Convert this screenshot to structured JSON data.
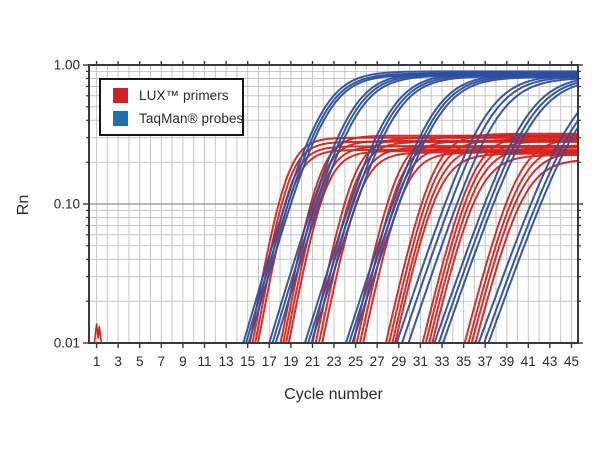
{
  "legend": {
    "items": [
      {
        "label": "LUX™ primers",
        "color": "#d22027"
      },
      {
        "label": "TaqMan® probes",
        "color": "#1e6fae"
      }
    ]
  },
  "chart_data": {
    "type": "line",
    "title": "",
    "xlabel": "Cycle number",
    "ylabel": "Rn",
    "x_scale": "linear",
    "y_scale": "log",
    "xlim": [
      1,
      45
    ],
    "ylim": [
      0.01,
      1.0
    ],
    "x_ticks": [
      1,
      3,
      5,
      7,
      9,
      11,
      13,
      15,
      17,
      19,
      21,
      23,
      25,
      27,
      29,
      31,
      33,
      35,
      37,
      39,
      41,
      43,
      45
    ],
    "y_ticks": [
      {
        "value": 1.0,
        "label": "1.00"
      },
      {
        "value": 0.1,
        "label": "0.10"
      },
      {
        "value": 0.01,
        "label": "0.01"
      }
    ],
    "grid": true,
    "legend_position": "top-left",
    "model": "Rn(c) = plateau / (1 + exp(-k*(c - cmid))); cmid chosen so each curve lifts off the 0.01 baseline at cycle ct",
    "series": [
      {
        "name": "LUX™ primers",
        "color": "#d6241c",
        "baseline_spike": {
          "points": [
            [
              0.8,
              0.01
            ],
            [
              1.0,
              0.0138
            ],
            [
              1.15,
              0.0108
            ],
            [
              1.25,
              0.0132
            ],
            [
              1.45,
              0.01
            ]
          ]
        },
        "groups": [
          {
            "k": 1.0,
            "curves": [
              {
                "ct": 15.2,
                "plateau": 0.3
              },
              {
                "ct": 15.45,
                "plateau": 0.28
              },
              {
                "ct": 15.7,
                "plateau": 0.26
              },
              {
                "ct": 15.95,
                "plateau": 0.245
              }
            ]
          },
          {
            "k": 0.95,
            "curves": [
              {
                "ct": 18.05,
                "plateau": 0.31
              },
              {
                "ct": 18.3,
                "plateau": 0.285
              },
              {
                "ct": 18.55,
                "plateau": 0.26
              },
              {
                "ct": 18.8,
                "plateau": 0.24
              }
            ]
          },
          {
            "k": 0.9,
            "curves": [
              {
                "ct": 21.0,
                "plateau": 0.3
              },
              {
                "ct": 21.3,
                "plateau": 0.28
              },
              {
                "ct": 21.6,
                "plateau": 0.255
              },
              {
                "ct": 21.9,
                "plateau": 0.235
              }
            ]
          },
          {
            "k": 0.85,
            "curves": [
              {
                "ct": 24.8,
                "plateau": 0.31
              },
              {
                "ct": 25.1,
                "plateau": 0.285
              },
              {
                "ct": 25.4,
                "plateau": 0.26
              },
              {
                "ct": 25.7,
                "plateau": 0.235
              }
            ]
          },
          {
            "k": 0.8,
            "curves": [
              {
                "ct": 27.8,
                "plateau": 0.32
              },
              {
                "ct": 28.1,
                "plateau": 0.29
              },
              {
                "ct": 28.4,
                "plateau": 0.26
              },
              {
                "ct": 28.65,
                "plateau": 0.23
              }
            ]
          },
          {
            "k": 0.75,
            "curves": [
              {
                "ct": 31.2,
                "plateau": 0.31
              },
              {
                "ct": 31.5,
                "plateau": 0.285
              },
              {
                "ct": 31.8,
                "plateau": 0.255
              },
              {
                "ct": 32.1,
                "plateau": 0.225
              }
            ]
          },
          {
            "k": 0.7,
            "curves": [
              {
                "ct": 35.1,
                "plateau": 0.3
              },
              {
                "ct": 35.45,
                "plateau": 0.27
              },
              {
                "ct": 35.75,
                "plateau": 0.24
              },
              {
                "ct": 36.1,
                "plateau": 0.21
              }
            ]
          }
        ]
      },
      {
        "name": "TaqMan® probes",
        "color": "#2b4f9f",
        "groups": [
          {
            "k": 0.62,
            "curves": [
              {
                "ct": 14.6,
                "plateau": 0.9
              },
              {
                "ct": 14.85,
                "plateau": 0.87
              },
              {
                "ct": 15.1,
                "plateau": 0.85
              }
            ]
          },
          {
            "k": 0.6,
            "curves": [
              {
                "ct": 17.0,
                "plateau": 0.88
              },
              {
                "ct": 17.3,
                "plateau": 0.86
              },
              {
                "ct": 17.6,
                "plateau": 0.84
              }
            ]
          },
          {
            "k": 0.58,
            "curves": [
              {
                "ct": 20.3,
                "plateau": 0.87
              },
              {
                "ct": 20.6,
                "plateau": 0.85
              },
              {
                "ct": 20.9,
                "plateau": 0.83
              }
            ]
          },
          {
            "k": 0.56,
            "curves": [
              {
                "ct": 24.1,
                "plateau": 0.86
              },
              {
                "ct": 24.4,
                "plateau": 0.84
              },
              {
                "ct": 24.7,
                "plateau": 0.82
              }
            ]
          },
          {
            "k": 0.54,
            "curves": [
              {
                "ct": 28.8,
                "plateau": 0.85
              },
              {
                "ct": 29.3,
                "plateau": 0.83
              },
              {
                "ct": 29.9,
                "plateau": 0.81
              }
            ]
          },
          {
            "k": 0.52,
            "curves": [
              {
                "ct": 32.3,
                "plateau": 0.84
              },
              {
                "ct": 32.7,
                "plateau": 0.82
              },
              {
                "ct": 33.1,
                "plateau": 0.8
              }
            ]
          },
          {
            "k": 0.5,
            "curves": [
              {
                "ct": 36.4,
                "plateau": 0.83
              },
              {
                "ct": 36.9,
                "plateau": 0.81
              },
              {
                "ct": 37.3,
                "plateau": 0.8
              }
            ]
          }
        ]
      }
    ]
  }
}
